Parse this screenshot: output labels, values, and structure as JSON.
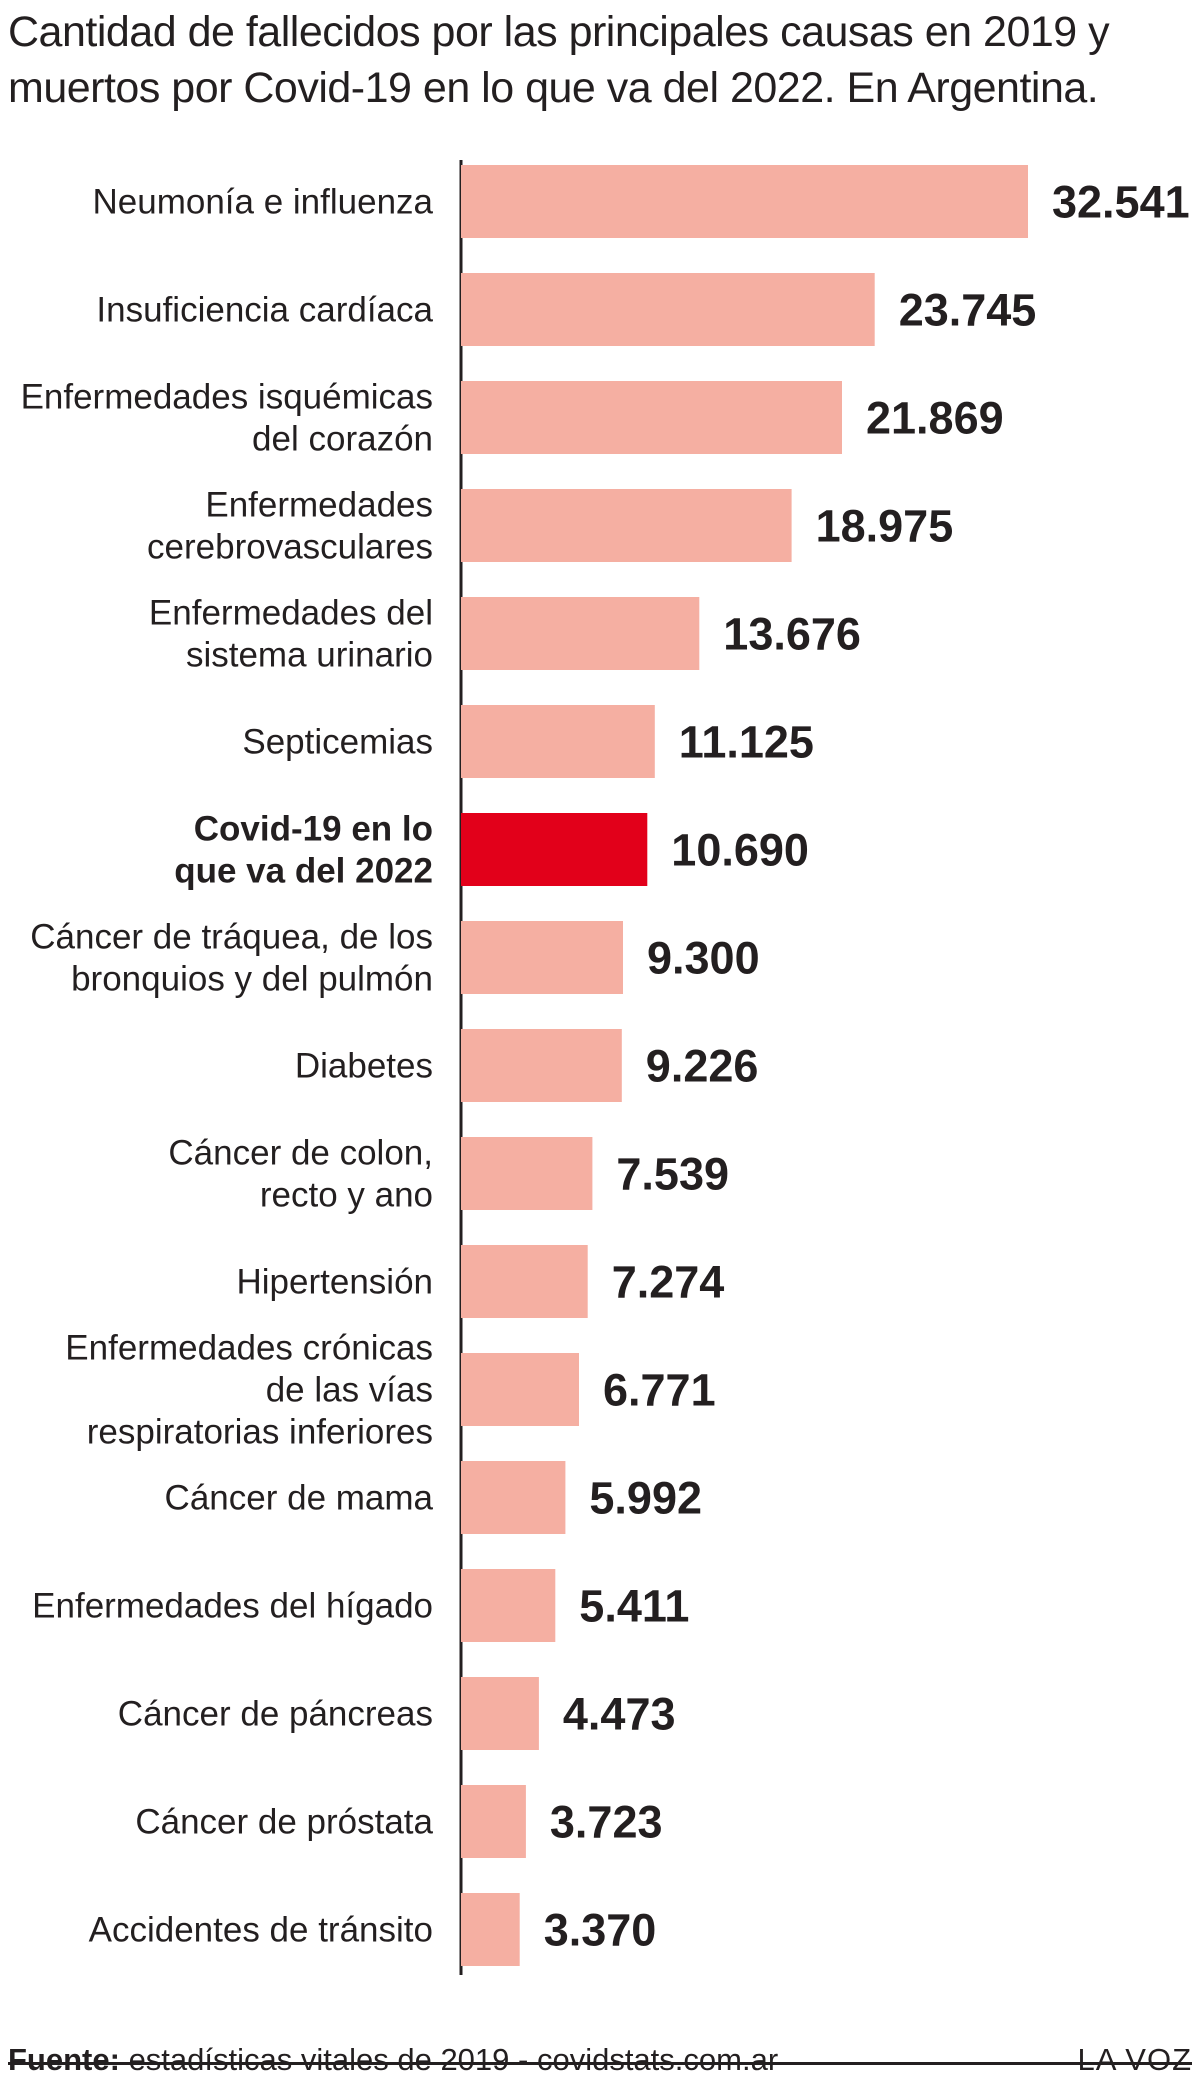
{
  "title": "Cantidad de fallecidos por las principales causas en 2019 y muertos por Covid-19 en lo que va del 2022. En Argentina.",
  "footer": {
    "source_label": "Fuente:",
    "source_text": "estadísticas vitales de 2019 - covidstats.com.ar",
    "brand": "LA VOZ"
  },
  "chart_data": {
    "type": "bar",
    "orientation": "horizontal",
    "title": "Cantidad de fallecidos por las principales causas en 2019 y muertos por Covid-19 en lo que va del 2022. En Argentina.",
    "categories": [
      [
        "Neumonía e influenza"
      ],
      [
        "Insuficiencia cardíaca"
      ],
      [
        "Enfermedades isquémicas",
        "del corazón"
      ],
      [
        "Enfermedades",
        "cerebrovasculares"
      ],
      [
        "Enfermedades del",
        "sistema urinario"
      ],
      [
        "Septicemias"
      ],
      [
        "Covid-19 en lo",
        "que va del 2022"
      ],
      [
        "Cáncer de tráquea, de los",
        "bronquios y del pulmón"
      ],
      [
        "Diabetes"
      ],
      [
        "Cáncer de colon,",
        "recto y ano"
      ],
      [
        "Hipertensión"
      ],
      [
        "Enfermedades crónicas",
        "de las vías",
        "respiratorias inferiores"
      ],
      [
        "Cáncer de mama"
      ],
      [
        "Enfermedades del hígado"
      ],
      [
        "Cáncer de páncreas"
      ],
      [
        "Cáncer de próstata"
      ],
      [
        "Accidentes de tránsito"
      ]
    ],
    "values": [
      32541,
      23745,
      21869,
      18975,
      13676,
      11125,
      10690,
      9300,
      9226,
      7539,
      7274,
      6771,
      5992,
      5411,
      4473,
      3723,
      3370
    ],
    "value_labels": [
      "32.541",
      "23.745",
      "21.869",
      "18.975",
      "13.676",
      "11.125",
      "10.690",
      "9.300",
      "9.226",
      "7.539",
      "7.274",
      "6.771",
      "5.992",
      "5.411",
      "4.473",
      "3.723",
      "3.370"
    ],
    "highlight_index": 6,
    "colors": {
      "bar": "#f5afa2",
      "highlight": "#e2001a",
      "text": "#231f20"
    },
    "grid": false,
    "legend": "none"
  }
}
